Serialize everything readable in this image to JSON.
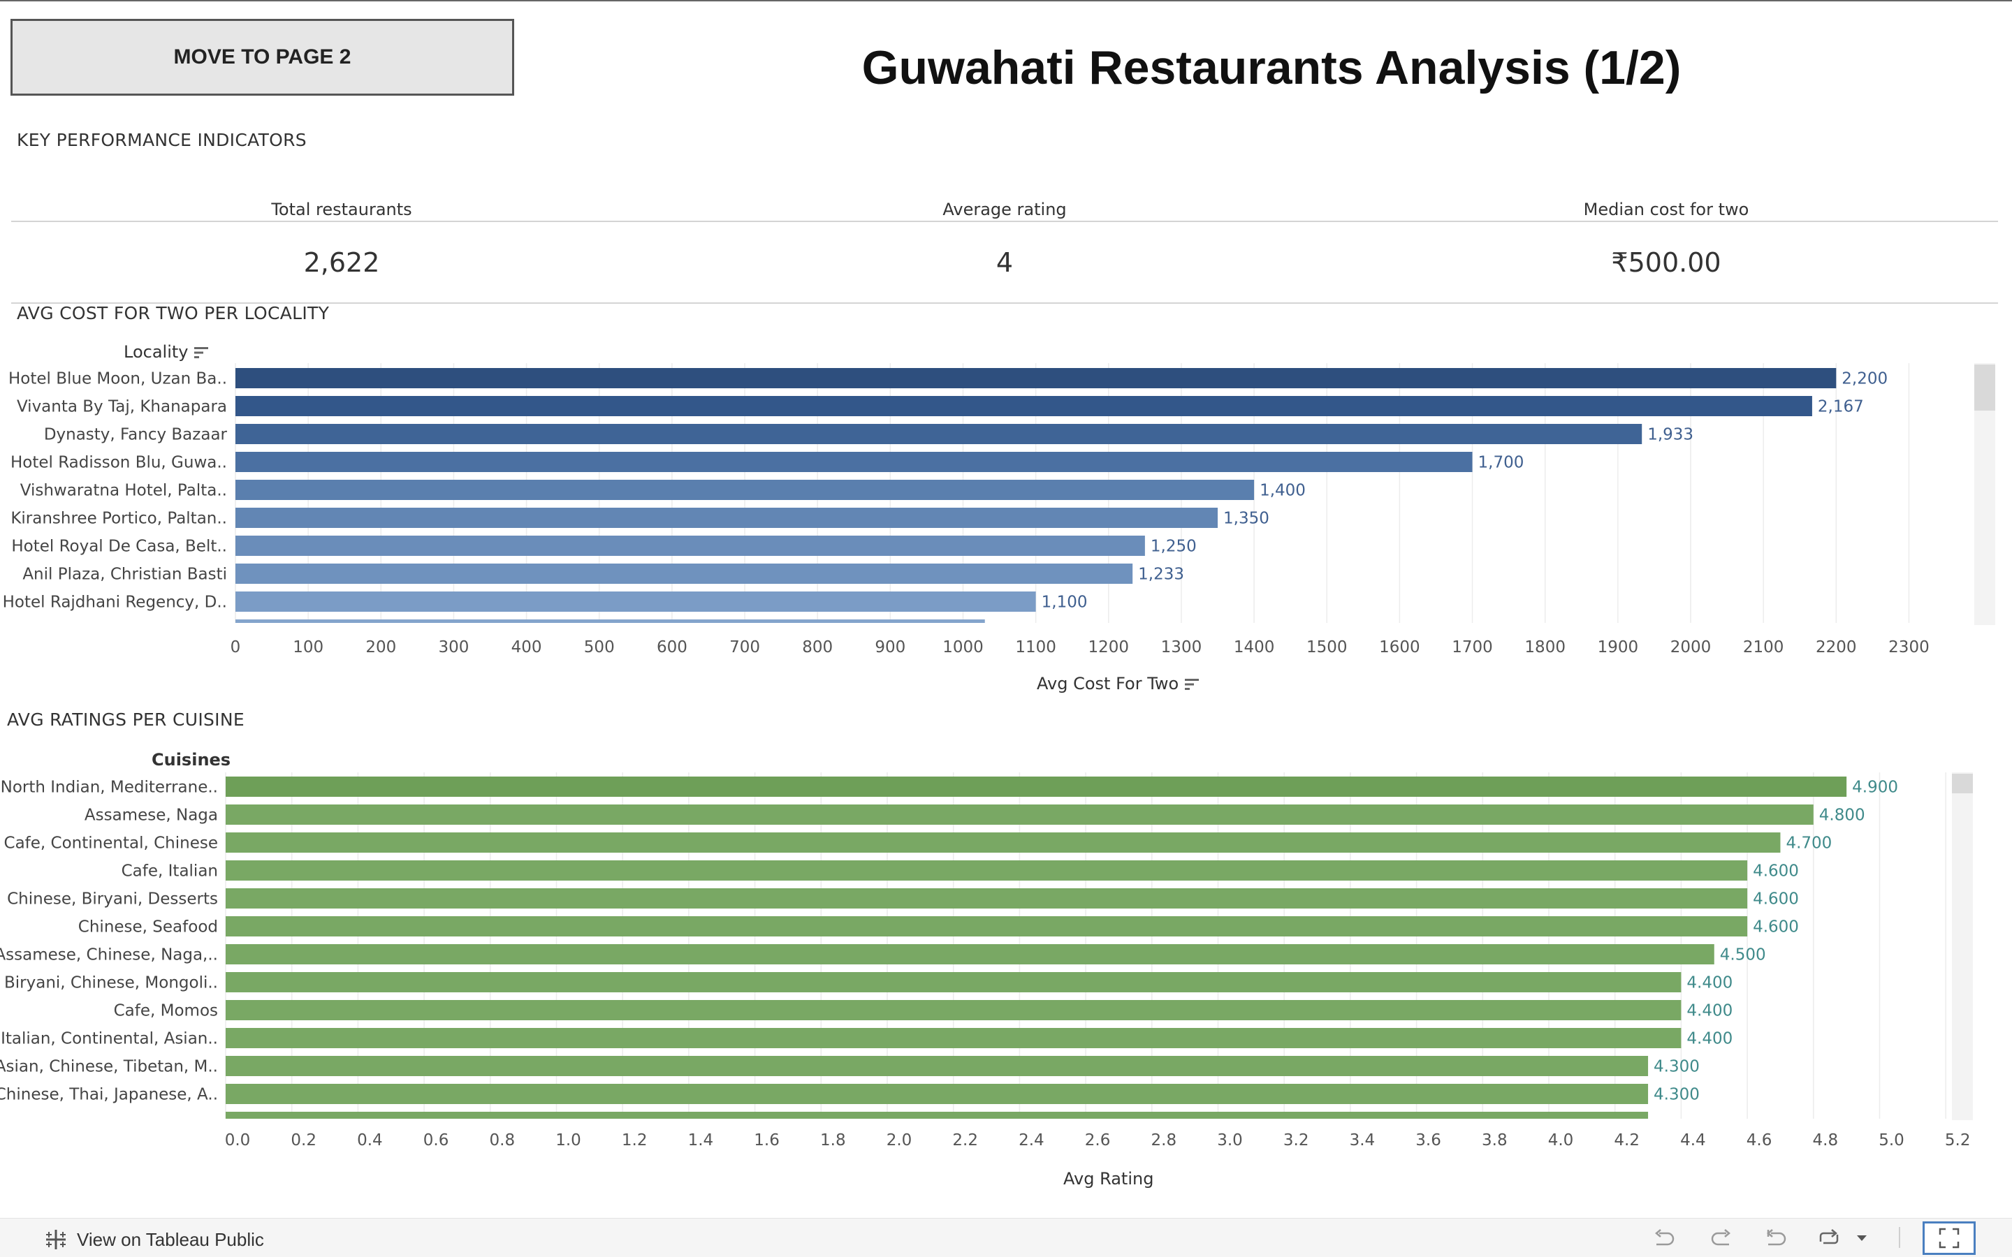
{
  "nav": {
    "button_label": "MOVE TO PAGE 2"
  },
  "title": "Guwahati Restaurants Analysis (1/2)",
  "kpi": {
    "section_title": "KEY PERFORMANCE INDICATORS",
    "items": [
      {
        "label": "Total restaurants",
        "value": "2,622"
      },
      {
        "label": "Average rating",
        "value": "4"
      },
      {
        "label": "Median cost for two",
        "value": "₹500.00"
      }
    ]
  },
  "chart_data": [
    {
      "type": "bar",
      "orientation": "horizontal",
      "title": "AVG COST FOR TWO PER LOCALITY",
      "ylabel": "Locality",
      "xlabel": "Avg Cost For Two",
      "xlim": [
        0,
        2350
      ],
      "xticks": [
        0,
        100,
        200,
        300,
        400,
        500,
        600,
        700,
        800,
        900,
        1000,
        1100,
        1200,
        1300,
        1400,
        1500,
        1600,
        1700,
        1800,
        1900,
        2000,
        2100,
        2200,
        2300
      ],
      "grid": true,
      "categories": [
        "Hotel Blue Moon, Uzan Ba..",
        "Vivanta By Taj, Khanapara",
        "Dynasty, Fancy Bazaar",
        "Hotel Radisson Blu, Guwa..",
        "Vishwaratna Hotel, Palta..",
        "Kiranshree Portico, Paltan..",
        "Hotel Royal De Casa, Belt..",
        "Anil Plaza, Christian Basti",
        "Hotel Rajdhani Regency, D..",
        ""
      ],
      "values": [
        2200,
        2167,
        1933,
        1700,
        1400,
        1350,
        1250,
        1233,
        1100,
        1030
      ],
      "value_labels": [
        "2,200",
        "2,167",
        "1,933",
        "1,700",
        "1,400",
        "1,350",
        "1,250",
        "1,233",
        "1,100",
        ""
      ],
      "colors": [
        "#2e4f7e",
        "#33578a",
        "#3f6496",
        "#4b70a2",
        "#5a7fae",
        "#6286b4",
        "#6a8dba",
        "#6f92be",
        "#7b9cc6",
        "#84a4cc"
      ]
    },
    {
      "type": "bar",
      "orientation": "horizontal",
      "title": "AVG RATINGS PER CUISINE",
      "ylabel": "Cuisines",
      "xlabel": "Avg Rating",
      "xlim": [
        0,
        5.3
      ],
      "xticks": [
        "0.0",
        "0.2",
        "0.4",
        "0.6",
        "0.8",
        "1.0",
        "1.2",
        "1.4",
        "1.6",
        "1.8",
        "2.0",
        "2.2",
        "2.4",
        "2.6",
        "2.8",
        "3.0",
        "3.2",
        "3.4",
        "3.6",
        "3.8",
        "4.0",
        "4.2",
        "4.4",
        "4.6",
        "4.8",
        "5.0",
        "5.2"
      ],
      "grid": true,
      "categories": [
        "North Indian, Mediterrane..",
        "Assamese, Naga",
        "Cafe, Continental, Chinese",
        "Cafe, Italian",
        "Chinese, Biryani, Desserts",
        "Chinese, Seafood",
        "Assamese, Chinese, Naga,..",
        "Biryani, Chinese, Mongoli..",
        "Cafe, Momos",
        "Italian, Continental, Asian..",
        "Asian, Chinese, Tibetan, M..",
        "Chinese, Thai, Japanese, A..",
        ""
      ],
      "values": [
        4.9,
        4.8,
        4.7,
        4.6,
        4.6,
        4.6,
        4.5,
        4.4,
        4.4,
        4.4,
        4.3,
        4.3,
        4.3
      ],
      "value_labels": [
        "4.900",
        "4.800",
        "4.700",
        "4.600",
        "4.600",
        "4.600",
        "4.500",
        "4.400",
        "4.400",
        "4.400",
        "4.300",
        "4.300",
        ""
      ],
      "bar_color": "#79a864",
      "top_bar_color": "#6e9f58",
      "label_color": "#3f8a8a"
    }
  ],
  "footer": {
    "link_label": "View on Tableau Public",
    "icons": [
      "tableau-logo-icon",
      "undo-icon",
      "redo-icon",
      "revert-icon",
      "share-icon",
      "dropdown-icon",
      "fullscreen-icon"
    ]
  }
}
